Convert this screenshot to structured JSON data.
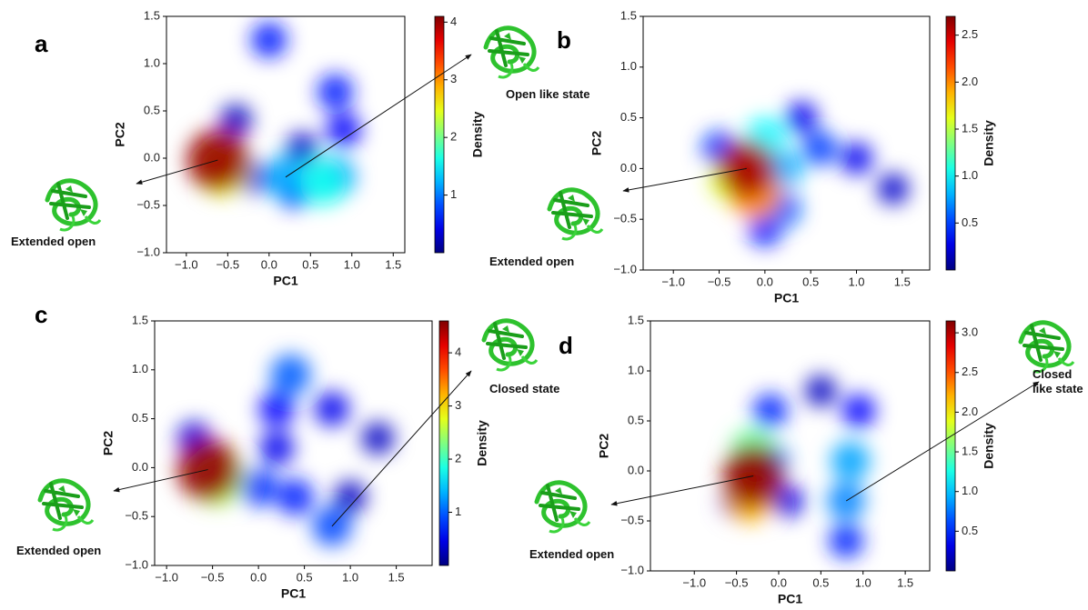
{
  "chart_data": [
    {
      "type": "density",
      "panel_label": "a",
      "xlabel": "PC1",
      "ylabel": "PC2",
      "colorbar_label": "Density",
      "xlim": [
        -1.24,
        1.64
      ],
      "ylim": [
        -1,
        1.5
      ],
      "xticks": [
        {
          "value": -1,
          "label": "−1.0"
        },
        {
          "value": -0.5,
          "label": "−0.5"
        },
        {
          "value": 0,
          "label": "0.0"
        },
        0.5,
        {
          "value": 1,
          "label": "1.0"
        },
        1.5
      ],
      "yticks": [
        {
          "value": -1,
          "label": "−1.0"
        },
        {
          "value": -0.5,
          "label": "−0.5"
        },
        {
          "value": 0,
          "label": "0.0"
        },
        0.5,
        {
          "value": 1,
          "label": "1.0"
        },
        1.5
      ],
      "clim": [
        0,
        4.1
      ],
      "cticks": [
        1,
        2,
        3,
        4
      ],
      "x": [
        -0.4,
        0.9,
        0.0,
        0.8,
        0.4,
        -0.2,
        0.3,
        0.8,
        0.2,
        0.65,
        -0.55,
        -0.62
      ],
      "y": [
        0.4,
        0.3,
        1.25,
        0.7,
        0.1,
        -0.2,
        -0.35,
        -0.2,
        -0.2,
        -0.25,
        -0.1,
        -0.02
      ],
      "values": [
        0.25,
        0.5,
        0.6,
        0.6,
        0.3,
        0.4,
        0.5,
        1.0,
        1.2,
        1.6,
        2.5,
        4.0
      ],
      "annotations": [
        "Extended open",
        "Open like state"
      ]
    },
    {
      "type": "density",
      "panel_label": "b",
      "xlabel": "PC1",
      "ylabel": "PC2",
      "colorbar_label": "Density",
      "xlim": [
        -1.33,
        1.8
      ],
      "ylim": [
        -1,
        1.5
      ],
      "xticks": [
        {
          "value": -1,
          "label": "−1.0"
        },
        {
          "value": -0.5,
          "label": "−0.5"
        },
        {
          "value": 0,
          "label": "0.0"
        },
        0.5,
        {
          "value": 1,
          "label": "1.0"
        },
        1.5
      ],
      "yticks": [
        {
          "value": -1,
          "label": "−1.0"
        },
        {
          "value": -0.5,
          "label": "−0.5"
        },
        {
          "value": 0,
          "label": "0.0"
        },
        0.5,
        {
          "value": 1,
          "label": "1.0"
        },
        1.5
      ],
      "clim": [
        0,
        2.7
      ],
      "cticks": [
        0.5,
        {
          "value": 1,
          "label": "1.0"
        },
        1.5,
        {
          "value": 2,
          "label": "2.0"
        },
        2.5
      ],
      "x": [
        1.4,
        1.0,
        0.4,
        0.0,
        0.6,
        -0.5,
        0.2,
        0.2,
        0.0,
        -0.35,
        -0.1,
        -0.2
      ],
      "y": [
        -0.2,
        0.1,
        0.5,
        -0.6,
        0.2,
        0.2,
        -0.4,
        0.0,
        0.3,
        -0.1,
        -0.25,
        0.0
      ],
      "values": [
        0.2,
        0.3,
        0.3,
        0.4,
        0.5,
        0.5,
        0.6,
        0.8,
        1.0,
        1.6,
        2.0,
        2.6
      ],
      "annotations": [
        "Extended open"
      ]
    },
    {
      "type": "density",
      "panel_label": "c",
      "xlabel": "PC1",
      "ylabel": "PC2",
      "colorbar_label": "Density",
      "xlim": [
        -1.13,
        1.89
      ],
      "ylim": [
        -1,
        1.5
      ],
      "xticks": [
        {
          "value": -1,
          "label": "−1.0"
        },
        {
          "value": -0.5,
          "label": "−0.5"
        },
        {
          "value": 0,
          "label": "0.0"
        },
        0.5,
        {
          "value": 1,
          "label": "1.0"
        },
        1.5
      ],
      "yticks": [
        {
          "value": -1,
          "label": "−1.0"
        },
        {
          "value": -0.5,
          "label": "−0.5"
        },
        {
          "value": 0,
          "label": "0.0"
        },
        0.5,
        {
          "value": 1,
          "label": "1.0"
        },
        1.5
      ],
      "clim": [
        0,
        4.6
      ],
      "cticks": [
        1,
        2,
        3,
        4
      ],
      "x": [
        1.3,
        1.0,
        -0.7,
        0.8,
        0.2,
        0.2,
        0.4,
        0.0,
        0.8,
        0.35,
        -0.45,
        -0.55
      ],
      "y": [
        0.3,
        -0.3,
        0.3,
        0.6,
        0.2,
        0.6,
        -0.3,
        -0.2,
        -0.6,
        0.95,
        -0.1,
        -0.02
      ],
      "values": [
        0.3,
        0.3,
        0.4,
        0.5,
        0.5,
        0.6,
        0.7,
        0.8,
        0.9,
        1.0,
        2.5,
        4.5
      ],
      "annotations": [
        "Closed state",
        "Extended open"
      ]
    },
    {
      "type": "density",
      "panel_label": "d",
      "xlabel": "PC1",
      "ylabel": "PC2",
      "colorbar_label": "Density",
      "xlim": [
        -1.52,
        1.79
      ],
      "ylim": [
        -1,
        1.5
      ],
      "xticks": [
        {
          "value": -1,
          "label": "−1.0"
        },
        {
          "value": -0.5,
          "label": "−0.5"
        },
        {
          "value": 0,
          "label": "0.0"
        },
        0.5,
        {
          "value": 1,
          "label": "1.0"
        },
        1.5
      ],
      "yticks": [
        {
          "value": -1,
          "label": "−1.0"
        },
        {
          "value": -0.5,
          "label": "−0.5"
        },
        {
          "value": 0,
          "label": "0.0"
        },
        0.5,
        {
          "value": 1,
          "label": "1.0"
        },
        1.5
      ],
      "clim": [
        0,
        3.15
      ],
      "cticks": [
        0.5,
        {
          "value": 1,
          "label": "1.0"
        },
        1.5,
        {
          "value": 2,
          "label": "2.0"
        },
        2.5,
        {
          "value": 3,
          "label": "3.0"
        }
      ],
      "x": [
        0.5,
        0.1,
        0.95,
        -0.1,
        -0.5,
        0.8,
        -0.1,
        0.8,
        0.85,
        -0.3,
        -0.35,
        -0.3
      ],
      "y": [
        0.8,
        -0.3,
        0.6,
        0.6,
        -0.3,
        -0.7,
        0.1,
        -0.3,
        0.1,
        0.2,
        -0.25,
        -0.05
      ],
      "values": [
        0.2,
        0.3,
        0.4,
        0.5,
        0.5,
        0.5,
        0.8,
        0.8,
        0.9,
        1.5,
        2.2,
        3.1
      ],
      "annotations": [
        "Extended open",
        "Closed like state"
      ]
    }
  ]
}
